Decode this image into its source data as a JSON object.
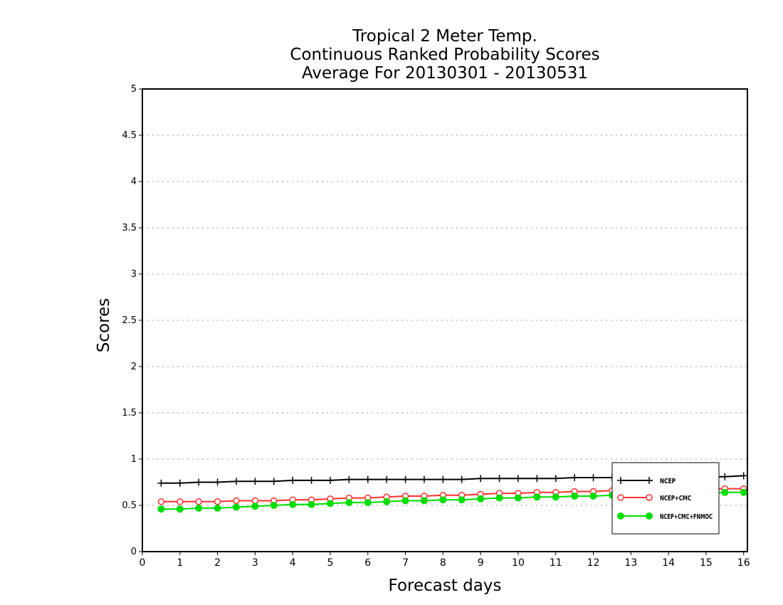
{
  "chart_data": {
    "type": "line",
    "title": [
      "Tropical 2 Meter Temp.",
      "Continuous Ranked Probability Scores",
      "Average For 20130301 - 20130531"
    ],
    "xlabel": "Forecast days",
    "ylabel": "Scores",
    "xlim": [
      0,
      16.1
    ],
    "ylim": [
      0,
      5
    ],
    "xticks": [
      "0",
      "1",
      "2",
      "3",
      "4",
      "5",
      "6",
      "7",
      "8",
      "9",
      "10",
      "11",
      "12",
      "13",
      "14",
      "15",
      "16"
    ],
    "yticks": [
      "0",
      "0.5",
      "1",
      "1.5",
      "2",
      "2.5",
      "3",
      "3.5",
      "4",
      "4.5",
      "5"
    ],
    "grid": "horizontal dotted",
    "legend_position": "bottom-right",
    "x": [
      0.5,
      1,
      1.5,
      2,
      2.5,
      3,
      3.5,
      4,
      4.5,
      5,
      5.5,
      6,
      6.5,
      7,
      7.5,
      8,
      8.5,
      9,
      9.5,
      10,
      10.5,
      11,
      11.5,
      12,
      12.5,
      13,
      13.5,
      14,
      14.5,
      15,
      15.5,
      16
    ],
    "series": [
      {
        "name": "NCEP",
        "color": "#000000",
        "marker": "plus",
        "values": [
          0.74,
          0.74,
          0.75,
          0.75,
          0.76,
          0.76,
          0.76,
          0.77,
          0.77,
          0.77,
          0.78,
          0.78,
          0.78,
          0.78,
          0.78,
          0.78,
          0.78,
          0.79,
          0.79,
          0.79,
          0.79,
          0.79,
          0.8,
          0.8,
          0.8,
          0.8,
          0.8,
          0.8,
          0.81,
          0.81,
          0.81,
          0.82
        ]
      },
      {
        "name": "NCEP+CMC",
        "color": "#ff3030",
        "marker": "open-circle",
        "values": [
          0.54,
          0.54,
          0.54,
          0.54,
          0.55,
          0.55,
          0.55,
          0.56,
          0.56,
          0.57,
          0.58,
          0.58,
          0.59,
          0.6,
          0.6,
          0.61,
          0.61,
          0.62,
          0.63,
          0.63,
          0.64,
          0.64,
          0.65,
          0.65,
          0.66,
          0.66,
          0.66,
          0.67,
          0.67,
          0.67,
          0.68,
          0.68
        ]
      },
      {
        "name": "NCEP+CMC+FNMOC",
        "color": "#00dd00",
        "marker": "filled-circle",
        "values": [
          0.46,
          0.46,
          0.47,
          0.47,
          0.48,
          0.49,
          0.5,
          0.51,
          0.51,
          0.52,
          0.53,
          0.53,
          0.54,
          0.55,
          0.55,
          0.56,
          0.56,
          0.57,
          0.58,
          0.58,
          0.59,
          0.59,
          0.6,
          0.6,
          0.61,
          0.61,
          0.62,
          0.62,
          0.63,
          0.63,
          0.64,
          0.64
        ]
      }
    ]
  }
}
